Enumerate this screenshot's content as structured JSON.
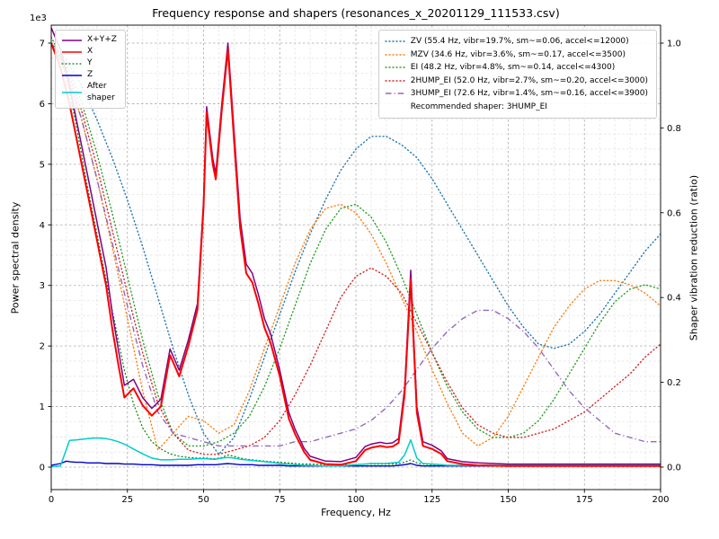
{
  "title": "Frequency response and shapers (resonances_x_20201129_111533.csv)",
  "axes": {
    "x": {
      "label": "Frequency, Hz",
      "min": 0,
      "max": 200,
      "ticks": [
        0,
        25,
        50,
        75,
        100,
        125,
        150,
        175,
        200
      ]
    },
    "y_left": {
      "label": "Power spectral density",
      "offset_text": "1e3",
      "min": 0,
      "max": 7.3,
      "ticks": [
        0,
        1,
        2,
        3,
        4,
        5,
        6,
        7
      ]
    },
    "y_right": {
      "label": "Shaper vibration reduction (ratio)",
      "min": 0,
      "max": 1.04,
      "ticks": [
        "0.0",
        "0.2",
        "0.4",
        "0.6",
        "0.8",
        "1.0"
      ]
    }
  },
  "legends": {
    "psd": {
      "items": [
        {
          "key": "xyz",
          "label": "X+Y+Z"
        },
        {
          "key": "x",
          "label": "X"
        },
        {
          "key": "y",
          "label": "Y"
        },
        {
          "key": "z",
          "label": "Z"
        },
        {
          "key": "after",
          "label": "After\nshaper"
        }
      ]
    },
    "shapers": {
      "items": [
        {
          "key": "zv",
          "label": "ZV (55.4 Hz, vibr=19.7%, sm~=0.06, accel<=12000)"
        },
        {
          "key": "mzv",
          "label": "MZV (34.6 Hz, vibr=3.6%, sm~=0.17, accel<=3500)"
        },
        {
          "key": "ei",
          "label": "EI (48.2 Hz, vibr=4.8%, sm~=0.14, accel<=4300)"
        },
        {
          "key": "2hump_ei",
          "label": "2HUMP_EI (52.0 Hz, vibr=2.7%, sm~=0.20, accel<=3000)"
        },
        {
          "key": "3hump_ei",
          "label": "3HUMP_EI (72.6 Hz, vibr=1.4%, sm~=0.16, accel<=3900)"
        },
        {
          "key": "recommended",
          "label": "Recommended shaper: 3HUMP_EI"
        }
      ]
    }
  },
  "chart_data": {
    "type": "line",
    "title": "Frequency response and shapers (resonances_x_20201129_111533.csv)",
    "xlabel": "Frequency, Hz",
    "ylabel_left": "Power spectral density (1e3)",
    "ylabel_right": "Shaper vibration reduction (ratio)",
    "xlim": [
      0,
      200
    ],
    "ylim_left": [
      0,
      7.3
    ],
    "ylim_right": [
      0,
      1.04
    ],
    "grid": "both",
    "psd_x": [
      0,
      3,
      5,
      6,
      8,
      10,
      12,
      14,
      16,
      18,
      20,
      22,
      24,
      27,
      30,
      33,
      36,
      39,
      42,
      45,
      48,
      50,
      51,
      53,
      54,
      56,
      58,
      60,
      62,
      64,
      66,
      68,
      70,
      72,
      75,
      78,
      80,
      83,
      85,
      90,
      95,
      100,
      103,
      105,
      108,
      110,
      112,
      114,
      116,
      118,
      120,
      122,
      125,
      128,
      130,
      135,
      140,
      150,
      160,
      170,
      180,
      190,
      200
    ],
    "psd_series": [
      {
        "key": "y",
        "name": "Y",
        "color": "#008000",
        "style": "dotted",
        "width": 1.2,
        "axis": "left",
        "values": [
          7.1,
          6.8,
          6.4,
          6.2,
          5.7,
          5.15,
          4.6,
          4.1,
          3.6,
          3.1,
          2.6,
          2.1,
          1.6,
          1.05,
          0.65,
          0.42,
          0.3,
          0.22,
          0.18,
          0.16,
          0.15,
          0.15,
          0.15,
          0.14,
          0.14,
          0.16,
          0.2,
          0.18,
          0.15,
          0.13,
          0.12,
          0.11,
          0.1,
          0.09,
          0.08,
          0.07,
          0.06,
          0.05,
          0.05,
          0.04,
          0.04,
          0.04,
          0.05,
          0.05,
          0.05,
          0.05,
          0.05,
          0.06,
          0.08,
          0.12,
          0.07,
          0.05,
          0.04,
          0.04,
          0.03,
          0.03,
          0.03,
          0.02,
          0.02,
          0.02,
          0.02,
          0.02,
          0.02
        ]
      },
      {
        "key": "z",
        "name": "Z",
        "color": "#0000cc",
        "style": "solid",
        "width": 1.4,
        "axis": "left",
        "values": [
          0.03,
          0.06,
          0.1,
          0.09,
          0.08,
          0.08,
          0.07,
          0.07,
          0.07,
          0.06,
          0.06,
          0.06,
          0.05,
          0.05,
          0.04,
          0.04,
          0.03,
          0.03,
          0.03,
          0.03,
          0.04,
          0.04,
          0.04,
          0.04,
          0.04,
          0.05,
          0.06,
          0.05,
          0.04,
          0.04,
          0.04,
          0.03,
          0.03,
          0.03,
          0.03,
          0.02,
          0.02,
          0.02,
          0.02,
          0.02,
          0.02,
          0.02,
          0.02,
          0.02,
          0.02,
          0.02,
          0.02,
          0.03,
          0.04,
          0.06,
          0.03,
          0.02,
          0.02,
          0.02,
          0.02,
          0.02,
          0.02,
          0.02,
          0.02,
          0.02,
          0.02,
          0.02,
          0.02
        ]
      },
      {
        "key": "after",
        "name": "After shaper",
        "color": "#00cccc",
        "style": "solid",
        "width": 1.5,
        "axis": "left",
        "values": [
          0.01,
          0.02,
          0.3,
          0.44,
          0.45,
          0.46,
          0.47,
          0.48,
          0.48,
          0.47,
          0.45,
          0.42,
          0.38,
          0.3,
          0.22,
          0.15,
          0.12,
          0.12,
          0.13,
          0.13,
          0.14,
          0.14,
          0.14,
          0.13,
          0.13,
          0.15,
          0.16,
          0.15,
          0.13,
          0.12,
          0.11,
          0.1,
          0.09,
          0.08,
          0.06,
          0.05,
          0.04,
          0.03,
          0.03,
          0.02,
          0.02,
          0.04,
          0.05,
          0.06,
          0.06,
          0.06,
          0.07,
          0.08,
          0.2,
          0.45,
          0.15,
          0.06,
          0.05,
          0.04,
          0.03,
          0.03,
          0.03,
          0.03,
          0.03,
          0.03,
          0.03,
          0.03,
          0.03
        ]
      },
      {
        "key": "xyz",
        "name": "X+Y+Z",
        "color": "#800080",
        "style": "solid",
        "width": 1.5,
        "axis": "left",
        "values": [
          7.25,
          6.9,
          6.5,
          6.3,
          5.8,
          5.3,
          4.8,
          4.3,
          3.8,
          3.3,
          2.55,
          1.95,
          1.35,
          1.45,
          1.15,
          0.97,
          1.12,
          1.95,
          1.6,
          2.1,
          2.7,
          4.4,
          5.95,
          5.1,
          4.85,
          6.0,
          7.0,
          5.55,
          4.1,
          3.35,
          3.2,
          2.85,
          2.45,
          2.2,
          1.6,
          0.9,
          0.63,
          0.31,
          0.18,
          0.1,
          0.09,
          0.16,
          0.34,
          0.38,
          0.41,
          0.39,
          0.4,
          0.47,
          1.3,
          3.25,
          1.0,
          0.42,
          0.36,
          0.27,
          0.14,
          0.09,
          0.07,
          0.05,
          0.05,
          0.05,
          0.05,
          0.05,
          0.05
        ]
      },
      {
        "key": "x",
        "name": "X",
        "color": "#ff0000",
        "style": "solid",
        "width": 2,
        "axis": "left",
        "values": [
          7.0,
          6.6,
          6.2,
          6.0,
          5.5,
          5.0,
          4.5,
          4.0,
          3.5,
          3.0,
          2.3,
          1.7,
          1.15,
          1.3,
          1.02,
          0.85,
          1.0,
          1.85,
          1.5,
          2.0,
          2.6,
          4.3,
          5.85,
          5.0,
          4.75,
          5.9,
          6.9,
          5.4,
          3.95,
          3.2,
          3.05,
          2.7,
          2.3,
          2.05,
          1.5,
          0.8,
          0.55,
          0.25,
          0.12,
          0.05,
          0.04,
          0.1,
          0.28,
          0.32,
          0.35,
          0.33,
          0.34,
          0.4,
          1.2,
          3.1,
          0.9,
          0.35,
          0.3,
          0.22,
          0.1,
          0.05,
          0.03,
          0.02,
          0.02,
          0.02,
          0.02,
          0.02,
          0.02
        ]
      }
    ],
    "shaper_x": [
      0,
      5,
      10,
      15,
      20,
      25,
      30,
      35,
      40,
      45,
      50,
      55,
      60,
      65,
      70,
      75,
      80,
      85,
      90,
      95,
      100,
      105,
      110,
      115,
      120,
      125,
      130,
      135,
      140,
      145,
      150,
      155,
      160,
      165,
      170,
      175,
      180,
      185,
      190,
      195,
      200
    ],
    "shaper_series": [
      {
        "key": "zv",
        "name": "ZV",
        "freq_hz": 55.4,
        "vibr_pct": 19.7,
        "sm": 0.06,
        "accel": 12000,
        "color": "#1f77b4",
        "style": "dotted",
        "width": 1.4,
        "axis": "right",
        "values": [
          1.0,
          0.96,
          0.9,
          0.82,
          0.73,
          0.63,
          0.52,
          0.4,
          0.28,
          0.17,
          0.08,
          0.03,
          0.07,
          0.16,
          0.26,
          0.36,
          0.46,
          0.55,
          0.63,
          0.7,
          0.75,
          0.78,
          0.78,
          0.76,
          0.73,
          0.68,
          0.62,
          0.56,
          0.5,
          0.44,
          0.38,
          0.33,
          0.29,
          0.28,
          0.29,
          0.32,
          0.36,
          0.41,
          0.46,
          0.51,
          0.55
        ]
      },
      {
        "key": "mzv",
        "name": "MZV",
        "freq_hz": 34.6,
        "vibr_pct": 3.6,
        "sm": 0.17,
        "accel": 3500,
        "color": "#ff7f0e",
        "style": "dotted",
        "width": 1.4,
        "axis": "right",
        "values": [
          1.0,
          0.93,
          0.82,
          0.68,
          0.52,
          0.35,
          0.18,
          0.04,
          0.08,
          0.12,
          0.11,
          0.08,
          0.1,
          0.18,
          0.28,
          0.38,
          0.48,
          0.56,
          0.61,
          0.62,
          0.6,
          0.55,
          0.48,
          0.4,
          0.32,
          0.23,
          0.15,
          0.08,
          0.05,
          0.07,
          0.12,
          0.19,
          0.26,
          0.33,
          0.38,
          0.42,
          0.44,
          0.44,
          0.43,
          0.41,
          0.38
        ]
      },
      {
        "key": "ei",
        "name": "EI",
        "freq_hz": 48.2,
        "vibr_pct": 4.8,
        "sm": 0.14,
        "accel": 4300,
        "color": "#2ca02c",
        "style": "dotted",
        "width": 1.4,
        "axis": "right",
        "values": [
          1.0,
          0.95,
          0.86,
          0.74,
          0.6,
          0.45,
          0.3,
          0.17,
          0.08,
          0.05,
          0.05,
          0.06,
          0.08,
          0.12,
          0.19,
          0.28,
          0.38,
          0.48,
          0.56,
          0.61,
          0.62,
          0.59,
          0.53,
          0.45,
          0.36,
          0.27,
          0.19,
          0.13,
          0.09,
          0.07,
          0.07,
          0.08,
          0.11,
          0.16,
          0.22,
          0.28,
          0.34,
          0.39,
          0.42,
          0.43,
          0.42
        ]
      },
      {
        "key": "2hump_ei",
        "name": "2HUMP_EI",
        "freq_hz": 52.0,
        "vibr_pct": 2.7,
        "sm": 0.2,
        "accel": 3000,
        "color": "#d62728",
        "style": "dotted",
        "width": 1.4,
        "axis": "right",
        "values": [
          1.0,
          0.94,
          0.84,
          0.71,
          0.56,
          0.41,
          0.27,
          0.15,
          0.08,
          0.04,
          0.03,
          0.03,
          0.04,
          0.05,
          0.07,
          0.11,
          0.17,
          0.24,
          0.32,
          0.4,
          0.45,
          0.47,
          0.45,
          0.41,
          0.34,
          0.27,
          0.2,
          0.14,
          0.1,
          0.08,
          0.07,
          0.07,
          0.08,
          0.09,
          0.11,
          0.13,
          0.16,
          0.19,
          0.22,
          0.26,
          0.29
        ]
      },
      {
        "key": "3hump_ei",
        "name": "3HUMP_EI",
        "freq_hz": 72.6,
        "vibr_pct": 1.4,
        "sm": 0.16,
        "accel": 3900,
        "color": "#9467bd",
        "style": "dashdot",
        "width": 1.4,
        "axis": "right",
        "values": [
          1.0,
          0.93,
          0.82,
          0.68,
          0.53,
          0.38,
          0.24,
          0.13,
          0.08,
          0.07,
          0.06,
          0.05,
          0.05,
          0.05,
          0.05,
          0.05,
          0.06,
          0.06,
          0.07,
          0.08,
          0.09,
          0.11,
          0.14,
          0.18,
          0.23,
          0.28,
          0.32,
          0.35,
          0.37,
          0.37,
          0.35,
          0.32,
          0.28,
          0.23,
          0.18,
          0.14,
          0.11,
          0.08,
          0.07,
          0.06,
          0.06
        ]
      }
    ],
    "recommended_shaper": "3HUMP_EI"
  }
}
